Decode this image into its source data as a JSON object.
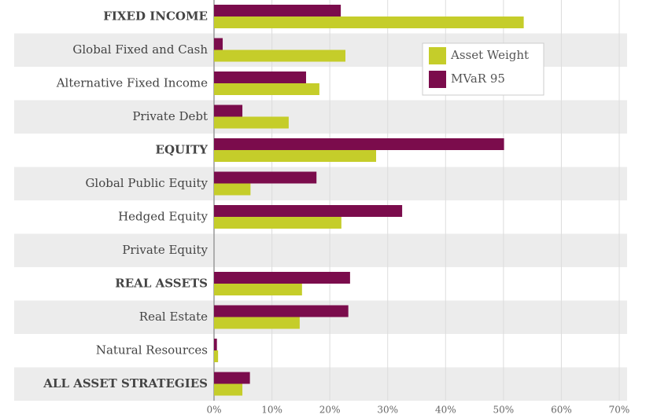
{
  "chart_data": {
    "type": "barh",
    "categories": [
      "FIXED INCOME",
      "Global Fixed and Cash",
      "Alternative Fixed Income",
      "Private Debt",
      "EQUITY",
      "Global Public Equity",
      "Hedged Equity",
      "Private Equity",
      "REAL ASSETS",
      "Real Estate",
      "Natural Resources",
      "ALL ASSET STRATEGIES"
    ],
    "series": [
      {
        "name": "Asset Weight",
        "color": "#c5cd2a",
        "values": [
          53.5,
          22.7,
          18.2,
          12.9,
          28.0,
          6.3,
          22.0,
          0,
          15.2,
          14.8,
          0.7,
          4.9
        ]
      },
      {
        "name": "MVaR 95",
        "color": "#7b0c4c",
        "values": [
          21.9,
          1.5,
          15.9,
          4.9,
          50.1,
          17.7,
          32.5,
          0,
          23.5,
          23.2,
          0.5,
          6.2
        ]
      }
    ],
    "xlim": [
      0,
      70
    ],
    "xticks": [
      {
        "value": 0,
        "label": "0%"
      },
      {
        "value": 10,
        "label": "10%"
      },
      {
        "value": 20,
        "label": "20%"
      },
      {
        "value": 30,
        "label": "30%"
      },
      {
        "value": 40,
        "label": "40%"
      },
      {
        "value": 50,
        "label": "50%"
      },
      {
        "value": 60,
        "label": "60%"
      },
      {
        "value": 70,
        "label": "70%"
      }
    ],
    "grid": true
  }
}
